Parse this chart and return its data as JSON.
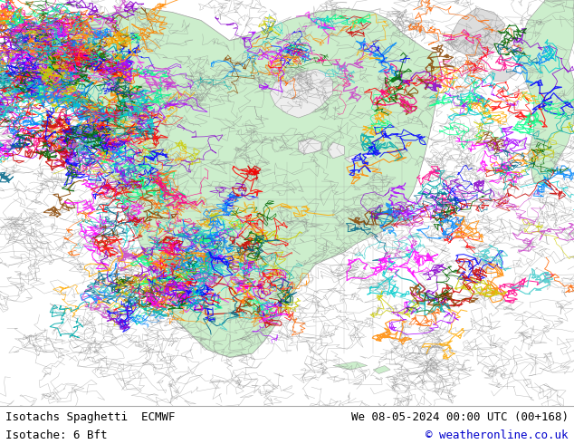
{
  "title_left": "Isotachs Spaghetti  ECMWF",
  "title_right": "We 08-05-2024 00:00 UTC (00+168)",
  "subtitle_left": "Isotache: 6 Bft",
  "subtitle_right": "© weatheronline.co.uk",
  "bg_color": "#ffffff",
  "ocean_color": "#eeeeee",
  "land_color": "#cceecc",
  "border_color": "#999999",
  "label_color_right": "#0000cc",
  "label_color_left": "#000000",
  "fig_width": 6.34,
  "fig_height": 4.9,
  "dpi": 100,
  "text_fontsize": 9,
  "subtitle_fontsize": 9,
  "spaghetti_colors": [
    "#ff00ff",
    "#ff0000",
    "#00cccc",
    "#0000ff",
    "#ff8800",
    "#ffaa00",
    "#ff0088",
    "#aa00ff",
    "#00ff88",
    "#0088ff",
    "#cc0000",
    "#00aaaa",
    "#8800cc",
    "#ff6600",
    "#006600",
    "#cc44cc",
    "#44cccc",
    "#cccc00",
    "#006688",
    "#884400"
  ]
}
